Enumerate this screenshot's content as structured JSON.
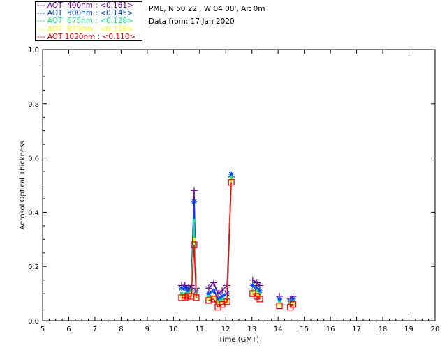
{
  "header": {
    "site": "PML, N 50 22', W 04 08', Alt 0m",
    "date": "Data from: 17 Jan 2020"
  },
  "chart_data": {
    "type": "line",
    "xlabel": "Time (GMT)",
    "ylabel": "Aerosol Optical Thickness",
    "xlim": [
      5,
      20
    ],
    "ylim": [
      0,
      1.0
    ],
    "xticks": [
      "5",
      "6",
      "7",
      "8",
      "9",
      "10",
      "11",
      "12",
      "13",
      "14",
      "15",
      "16",
      "17",
      "18",
      "19",
      "20"
    ],
    "yticks": [
      "0.0",
      "0.2",
      "0.4",
      "0.6",
      "0.8",
      "1.0"
    ],
    "legend_position": "top-left",
    "x": [
      10.31,
      10.44,
      10.56,
      10.68,
      10.79,
      10.87,
      11.35,
      11.54,
      11.7,
      11.86,
      12.05,
      12.21,
      13.03,
      13.19,
      13.3,
      14.05,
      14.47,
      14.57
    ],
    "segments": [
      [
        0,
        5
      ],
      [
        6,
        11
      ],
      [
        12,
        14
      ],
      [
        15,
        15
      ],
      [
        16,
        17
      ]
    ],
    "series": [
      {
        "name": "AOT  400nm",
        "mean": "<0.161>",
        "color": "#6a00a8",
        "marker": "plus",
        "values": [
          0.13,
          0.13,
          0.12,
          0.13,
          0.48,
          0.12,
          0.12,
          0.14,
          0.1,
          0.11,
          0.13,
          0.53,
          0.15,
          0.14,
          0.13,
          0.09,
          0.08,
          0.09
        ]
      },
      {
        "name": "AOT  500nm",
        "mean": "<0.145>",
        "color": "#0040ff",
        "marker": "asterisk",
        "values": [
          0.12,
          0.12,
          0.11,
          0.12,
          0.44,
          0.11,
          0.1,
          0.11,
          0.08,
          0.09,
          0.1,
          0.54,
          0.13,
          0.12,
          0.11,
          0.08,
          0.07,
          0.08
        ]
      },
      {
        "name": "AOT  675nm",
        "mean": "<0.128>",
        "color": "#00f080",
        "marker": "dot",
        "values": [
          0.1,
          0.1,
          0.1,
          0.11,
          0.37,
          0.1,
          0.09,
          0.09,
          0.07,
          0.08,
          0.08,
          0.53,
          0.11,
          0.11,
          0.1,
          0.07,
          0.07,
          0.07
        ]
      },
      {
        "name": "AOT  870nm",
        "mean": "<0.116>",
        "color": "#ffff00",
        "marker": "dot",
        "values": [
          0.09,
          0.09,
          0.09,
          0.1,
          0.3,
          0.09,
          0.08,
          0.09,
          0.06,
          0.07,
          0.07,
          0.52,
          0.1,
          0.1,
          0.09,
          0.06,
          0.06,
          0.06
        ]
      },
      {
        "name": "AOT 1020nm",
        "mean": "<0.110>",
        "color": "#ff0000",
        "marker": "square",
        "values": [
          0.085,
          0.085,
          0.09,
          0.09,
          0.28,
          0.085,
          0.075,
          0.08,
          0.05,
          0.06,
          0.07,
          0.51,
          0.1,
          0.09,
          0.08,
          0.055,
          0.05,
          0.06
        ]
      }
    ]
  }
}
